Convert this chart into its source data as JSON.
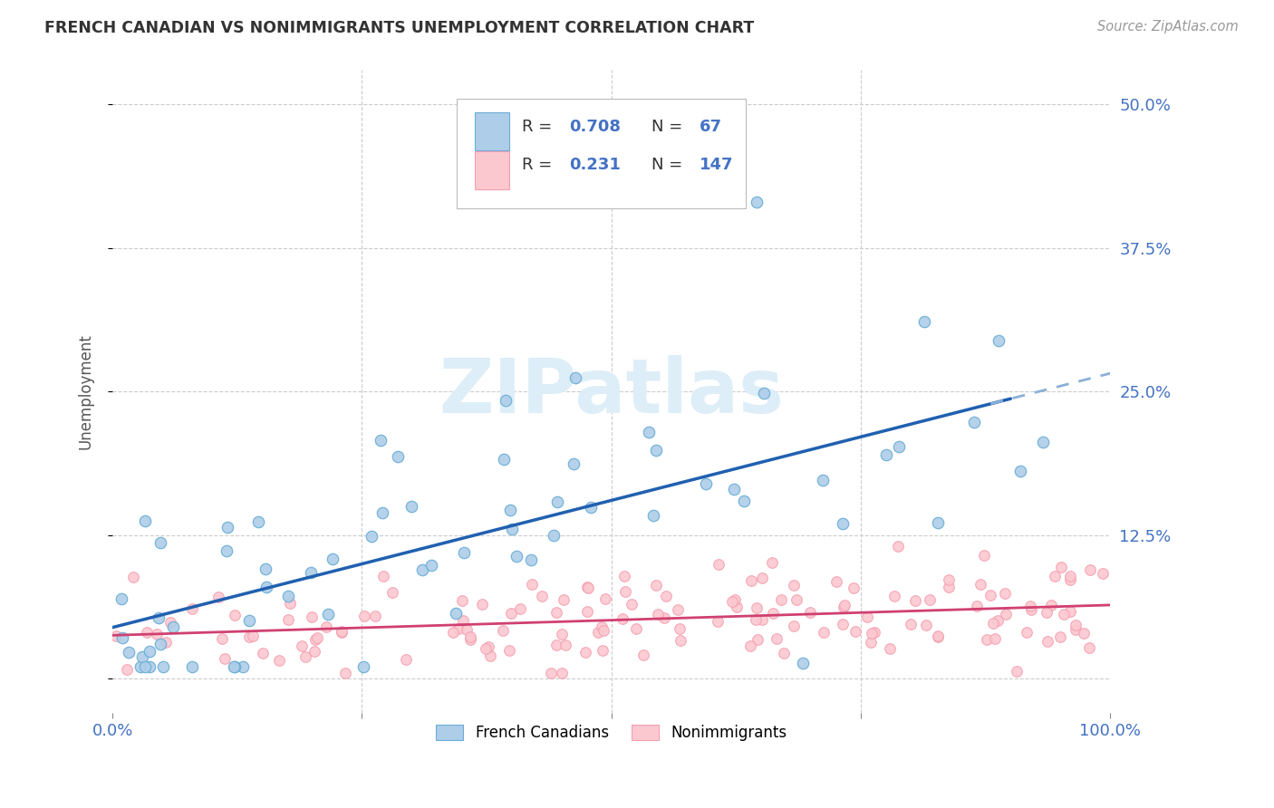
{
  "title": "FRENCH CANADIAN VS NONIMMIGRANTS UNEMPLOYMENT CORRELATION CHART",
  "source": "Source: ZipAtlas.com",
  "ylabel": "Unemployment",
  "yticks": [
    0.0,
    0.125,
    0.25,
    0.375,
    0.5
  ],
  "ytick_labels": [
    "",
    "12.5%",
    "25.0%",
    "37.5%",
    "50.0%"
  ],
  "xlim": [
    0.0,
    1.0
  ],
  "ylim": [
    -0.03,
    0.53
  ],
  "blue_R": 0.708,
  "blue_N": 67,
  "pink_R": 0.231,
  "pink_N": 147,
  "blue_color": "#6baed6",
  "pink_color": "#f4a0b0",
  "blue_scatter_fill": "#aecde8",
  "pink_scatter_fill": "#fcc8d0",
  "blue_line_color": "#2060b0",
  "pink_line_color": "#d04070",
  "dash_color": "#8ab0d8",
  "watermark_color": "#ddeef8",
  "legend_label_1": "French Canadians",
  "legend_label_2": "Nonimmigrants",
  "R_text_color": "#4472c4",
  "ytick_label_color": "#4472c4",
  "xtick_label_color": "#4472c4",
  "grid_color": "#cccccc",
  "title_color": "#333333",
  "source_color": "#999999",
  "ylabel_color": "#555555"
}
